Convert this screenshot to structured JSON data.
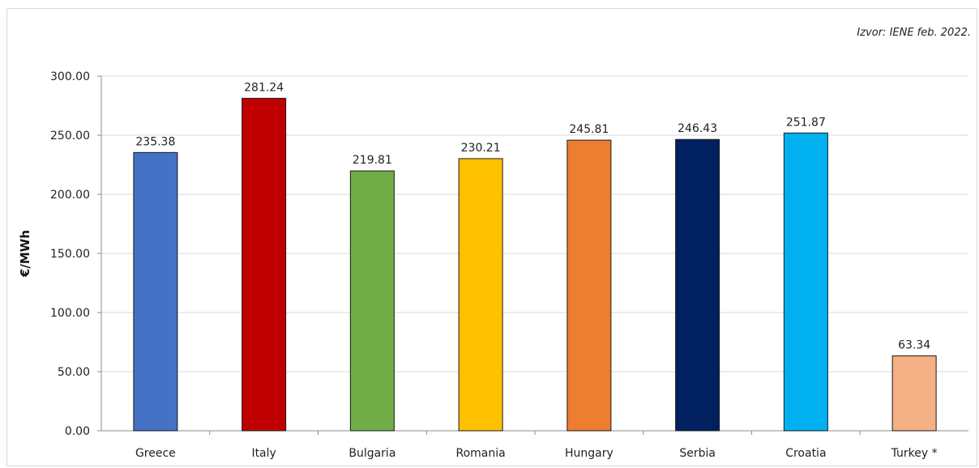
{
  "source_note": "Izvor: IENE feb. 2022.",
  "chart_data": {
    "type": "bar",
    "title": "",
    "xlabel": "",
    "ylabel": "€/MWh",
    "ylim": [
      0,
      300
    ],
    "yticks": [
      "0.00",
      "50.00",
      "100.00",
      "150.00",
      "200.00",
      "250.00",
      "300.00"
    ],
    "grid": true,
    "categories": [
      "Greece",
      "Italy",
      "Bulgaria",
      "Romania",
      "Hungary",
      "Serbia",
      "Croatia",
      "Turkey *"
    ],
    "values": [
      235.38,
      281.24,
      219.81,
      230.21,
      245.81,
      246.43,
      251.87,
      63.34
    ],
    "value_labels": [
      "235.38",
      "281.24",
      "219.81",
      "230.21",
      "245.81",
      "246.43",
      "251.87",
      "63.34"
    ],
    "colors": [
      "#4472c4",
      "#c00000",
      "#70ad47",
      "#ffc000",
      "#ed7d31",
      "#002060",
      "#00b0f0",
      "#f4b183"
    ]
  }
}
